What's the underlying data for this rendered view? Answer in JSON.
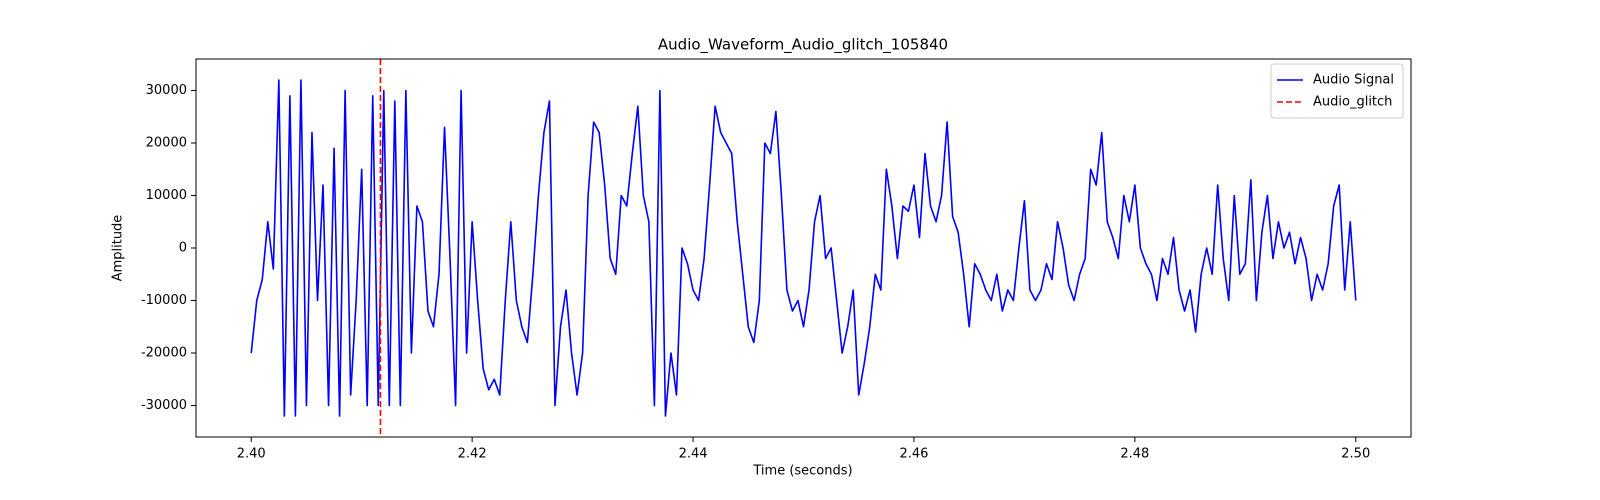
{
  "chart_data": {
    "type": "line",
    "title": "Audio_Waveform_Audio_glitch_105840",
    "xlabel": "Time (seconds)",
    "ylabel": "Amplitude",
    "xlim": [
      2.395,
      2.505
    ],
    "ylim": [
      -36000,
      36000
    ],
    "xticks": [
      {
        "value": 2.4,
        "label": "2.40"
      },
      {
        "value": 2.42,
        "label": "2.42"
      },
      {
        "value": 2.44,
        "label": "2.44"
      },
      {
        "value": 2.46,
        "label": "2.46"
      },
      {
        "value": 2.48,
        "label": "2.48"
      },
      {
        "value": 2.5,
        "label": "2.50"
      }
    ],
    "yticks": [
      -30000,
      -20000,
      -10000,
      0,
      10000,
      20000,
      30000
    ],
    "grid": false,
    "legend": "upper right",
    "x": [
      2.4,
      2.4005,
      2.401,
      2.4015,
      2.402,
      2.4025,
      2.403,
      2.4035,
      2.404,
      2.4045,
      2.405,
      2.4055,
      2.406,
      2.4065,
      2.407,
      2.4075,
      2.408,
      2.4085,
      2.409,
      2.4095,
      2.41,
      2.4105,
      2.411,
      2.4115,
      2.412,
      2.4125,
      2.413,
      2.4135,
      2.414,
      2.4145,
      2.415,
      2.4155,
      2.416,
      2.4165,
      2.417,
      2.4175,
      2.418,
      2.4185,
      2.419,
      2.4195,
      2.42,
      2.4205,
      2.421,
      2.4215,
      2.422,
      2.4225,
      2.423,
      2.4235,
      2.424,
      2.4245,
      2.425,
      2.4255,
      2.426,
      2.4265,
      2.427,
      2.4275,
      2.428,
      2.4285,
      2.429,
      2.4295,
      2.43,
      2.4305,
      2.431,
      2.4315,
      2.432,
      2.4325,
      2.433,
      2.4335,
      2.434,
      2.4345,
      2.435,
      2.4355,
      2.436,
      2.4365,
      2.437,
      2.4375,
      2.438,
      2.4385,
      2.439,
      2.4395,
      2.44,
      2.4405,
      2.441,
      2.4415,
      2.442,
      2.4425,
      2.443,
      2.4435,
      2.444,
      2.4445,
      2.445,
      2.4455,
      2.446,
      2.4465,
      2.447,
      2.4475,
      2.448,
      2.4485,
      2.449,
      2.4495,
      2.45,
      2.4505,
      2.451,
      2.4515,
      2.452,
      2.4525,
      2.453,
      2.4535,
      2.454,
      2.4545,
      2.455,
      2.4555,
      2.456,
      2.4565,
      2.457,
      2.4575,
      2.458,
      2.4585,
      2.459,
      2.4595,
      2.46,
      2.4605,
      2.461,
      2.4615,
      2.462,
      2.4625,
      2.463,
      2.4635,
      2.464,
      2.4645,
      2.465,
      2.4655,
      2.466,
      2.4665,
      2.467,
      2.4675,
      2.468,
      2.4685,
      2.469,
      2.4695,
      2.47,
      2.4705,
      2.471,
      2.4715,
      2.472,
      2.4725,
      2.473,
      2.4735,
      2.474,
      2.4745,
      2.475,
      2.4755,
      2.476,
      2.4765,
      2.477,
      2.4775,
      2.478,
      2.4785,
      2.479,
      2.4795,
      2.48,
      2.4805,
      2.481,
      2.4815,
      2.482,
      2.4825,
      2.483,
      2.4835,
      2.484,
      2.4845,
      2.485,
      2.4855,
      2.486,
      2.4865,
      2.487,
      2.4875,
      2.488,
      2.4885,
      2.489,
      2.4895,
      2.49,
      2.4905,
      2.491,
      2.4915,
      2.492,
      2.4925,
      2.493,
      2.4935,
      2.494,
      2.4945,
      2.495,
      2.4955,
      2.496,
      2.4965,
      2.497,
      2.4975,
      2.498,
      2.4985,
      2.499,
      2.4995,
      2.5
    ],
    "series": [
      {
        "name": "Audio Signal",
        "color": "#0000ff",
        "values": [
          -20000,
          -10000,
          -6000,
          5000,
          -4000,
          32000,
          -32000,
          29000,
          -32000,
          32000,
          -30000,
          22000,
          -10000,
          12000,
          -30000,
          19000,
          -32000,
          30000,
          -28000,
          -10000,
          15000,
          -30000,
          29000,
          -30000,
          30000,
          -30000,
          28000,
          -30000,
          30000,
          -20000,
          8000,
          5000,
          -12000,
          -15000,
          -5000,
          23000,
          -2000,
          -30000,
          30000,
          -20000,
          5000,
          -10000,
          -23000,
          -27000,
          -25000,
          -28000,
          -10000,
          5000,
          -10000,
          -15000,
          -18000,
          -5000,
          10000,
          22000,
          28000,
          -30000,
          -15000,
          -8000,
          -20000,
          -28000,
          -20000,
          10000,
          24000,
          22000,
          12000,
          -2000,
          -5000,
          10000,
          8000,
          18000,
          27000,
          10000,
          5000,
          -30000,
          30000,
          -32000,
          -20000,
          -28000,
          0,
          -3000,
          -8000,
          -10000,
          -2000,
          12000,
          27000,
          22000,
          20000,
          18000,
          5000,
          -5000,
          -15000,
          -18000,
          -10000,
          20000,
          18000,
          26000,
          10000,
          -8000,
          -12000,
          -10000,
          -15000,
          -8000,
          5000,
          10000,
          -2000,
          0,
          -10000,
          -20000,
          -15000,
          -8000,
          -28000,
          -22000,
          -15000,
          -5000,
          -8000,
          15000,
          8000,
          -2000,
          8000,
          7000,
          12000,
          2000,
          18000,
          8000,
          5000,
          10000,
          24000,
          6000,
          3000,
          -5000,
          -15000,
          -3000,
          -5000,
          -8000,
          -10000,
          -5000,
          -12000,
          -8000,
          -10000,
          0,
          9000,
          -8000,
          -10000,
          -8000,
          -3000,
          -6000,
          5000,
          0,
          -7000,
          -10000,
          -5000,
          -2000,
          15000,
          12000,
          22000,
          5000,
          2000,
          -2000,
          10000,
          5000,
          12000,
          0,
          -3000,
          -5000,
          -10000,
          -2000,
          -5000,
          2000,
          -8000,
          -12000,
          -8000,
          -16000,
          -5000,
          0,
          -5000,
          12000,
          -2000,
          -10000,
          10000,
          -5000,
          -3000,
          13000,
          -10000,
          3000,
          10000,
          -2000,
          5000,
          0,
          3000,
          -3000,
          2000,
          -2000,
          -10000,
          -5000,
          -8000,
          -3000,
          8000,
          12000,
          -8000,
          5000,
          -10000
        ]
      }
    ],
    "vlines": [
      {
        "name": "Audio_glitch",
        "x": 2.4117,
        "color": "#ff0000",
        "linestyle": "dashed"
      }
    ]
  }
}
